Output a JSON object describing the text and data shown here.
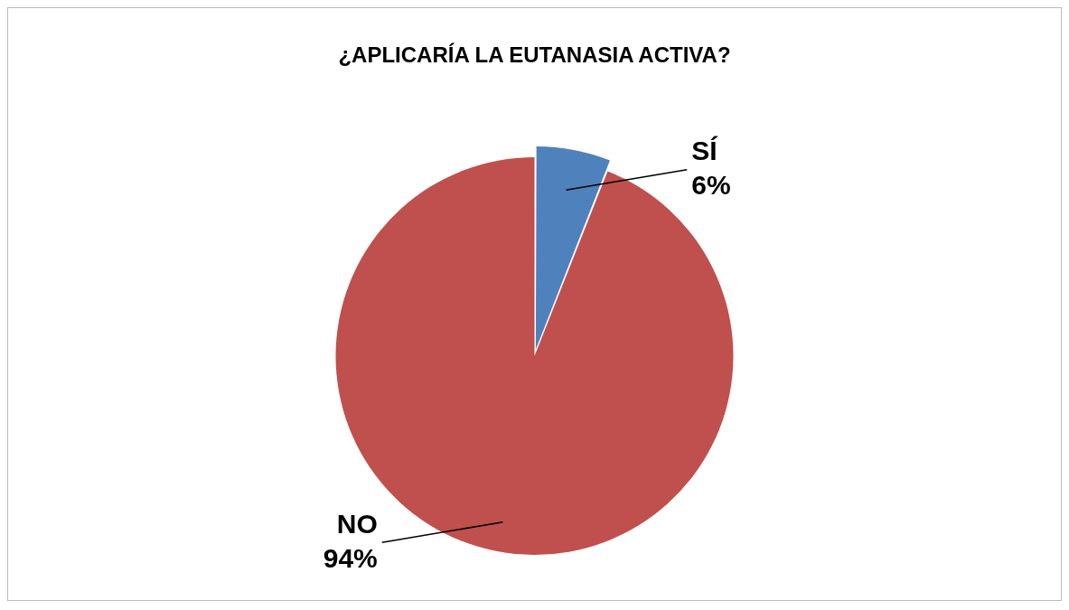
{
  "chart_data": {
    "type": "pie",
    "title": "¿APLICARÍA LA EUTANASIA ACTIVA?",
    "categories": [
      "SÍ",
      "NO"
    ],
    "values": [
      6,
      94
    ],
    "colors": [
      "#4f81bd",
      "#c0504d"
    ],
    "value_labels": [
      "6%",
      "94%"
    ],
    "legend": false
  }
}
